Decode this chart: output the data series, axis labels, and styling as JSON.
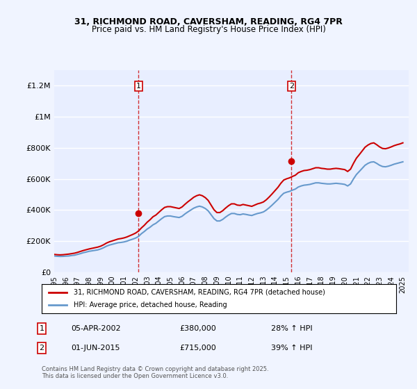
{
  "title_line1": "31, RICHMOND ROAD, CAVERSHAM, READING, RG4 7PR",
  "title_line2": "Price paid vs. HM Land Registry's House Price Index (HPI)",
  "legend_label_red": "31, RICHMOND ROAD, CAVERSHAM, READING, RG4 7PR (detached house)",
  "legend_label_blue": "HPI: Average price, detached house, Reading",
  "footnote": "Contains HM Land Registry data © Crown copyright and database right 2025.\nThis data is licensed under the Open Government Licence v3.0.",
  "sale1_date": "05-APR-2002",
  "sale1_price": 380000,
  "sale1_pct": "28% ↑ HPI",
  "sale2_date": "01-JUN-2015",
  "sale2_price": 715000,
  "sale2_pct": "39% ↑ HPI",
  "ylim": [
    0,
    1300000
  ],
  "background_color": "#f0f4ff",
  "plot_bg_color": "#e8eeff",
  "red_color": "#cc0000",
  "blue_color": "#6699cc",
  "vline_color": "#cc0000",
  "grid_color": "#ffffff",
  "hpi_data": {
    "years": [
      1995.0,
      1995.25,
      1995.5,
      1995.75,
      1996.0,
      1996.25,
      1996.5,
      1996.75,
      1997.0,
      1997.25,
      1997.5,
      1997.75,
      1998.0,
      1998.25,
      1998.5,
      1998.75,
      1999.0,
      1999.25,
      1999.5,
      1999.75,
      2000.0,
      2000.25,
      2000.5,
      2000.75,
      2001.0,
      2001.25,
      2001.5,
      2001.75,
      2002.0,
      2002.25,
      2002.5,
      2002.75,
      2003.0,
      2003.25,
      2003.5,
      2003.75,
      2004.0,
      2004.25,
      2004.5,
      2004.75,
      2005.0,
      2005.25,
      2005.5,
      2005.75,
      2006.0,
      2006.25,
      2006.5,
      2006.75,
      2007.0,
      2007.25,
      2007.5,
      2007.75,
      2008.0,
      2008.25,
      2008.5,
      2008.75,
      2009.0,
      2009.25,
      2009.5,
      2009.75,
      2010.0,
      2010.25,
      2010.5,
      2010.75,
      2011.0,
      2011.25,
      2011.5,
      2011.75,
      2012.0,
      2012.25,
      2012.5,
      2012.75,
      2013.0,
      2013.25,
      2013.5,
      2013.75,
      2014.0,
      2014.25,
      2014.5,
      2014.75,
      2015.0,
      2015.25,
      2015.5,
      2015.75,
      2016.0,
      2016.25,
      2016.5,
      2016.75,
      2017.0,
      2017.25,
      2017.5,
      2017.75,
      2018.0,
      2018.25,
      2018.5,
      2018.75,
      2019.0,
      2019.25,
      2019.5,
      2019.75,
      2020.0,
      2020.25,
      2020.5,
      2020.75,
      2021.0,
      2021.25,
      2021.5,
      2021.75,
      2022.0,
      2022.25,
      2022.5,
      2022.75,
      2023.0,
      2023.25,
      2023.5,
      2023.75,
      2024.0,
      2024.25,
      2024.5,
      2024.75,
      2025.0
    ],
    "hpi_values": [
      105000,
      103000,
      102000,
      102500,
      104000,
      105000,
      108000,
      110000,
      115000,
      120000,
      126000,
      130000,
      135000,
      138000,
      141000,
      144000,
      150000,
      158000,
      168000,
      175000,
      180000,
      185000,
      190000,
      192000,
      195000,
      200000,
      207000,
      213000,
      220000,
      230000,
      248000,
      262000,
      278000,
      290000,
      305000,
      315000,
      330000,
      345000,
      358000,
      362000,
      362000,
      358000,
      355000,
      352000,
      360000,
      375000,
      388000,
      400000,
      412000,
      420000,
      425000,
      420000,
      410000,
      395000,
      370000,
      345000,
      330000,
      330000,
      340000,
      355000,
      368000,
      378000,
      378000,
      372000,
      370000,
      375000,
      372000,
      368000,
      365000,
      372000,
      378000,
      382000,
      388000,
      400000,
      415000,
      432000,
      450000,
      468000,
      490000,
      508000,
      515000,
      520000,
      528000,
      535000,
      548000,
      555000,
      560000,
      562000,
      565000,
      570000,
      575000,
      575000,
      572000,
      570000,
      568000,
      568000,
      570000,
      572000,
      570000,
      568000,
      565000,
      555000,
      568000,
      600000,
      628000,
      648000,
      668000,
      688000,
      700000,
      708000,
      710000,
      700000,
      688000,
      680000,
      678000,
      682000,
      688000,
      695000,
      700000,
      705000,
      710000
    ],
    "red_values": [
      115000,
      113000,
      112000,
      113000,
      115000,
      117000,
      120000,
      123000,
      128000,
      134000,
      140000,
      145000,
      150000,
      154000,
      158000,
      162000,
      168000,
      177000,
      188000,
      196000,
      202000,
      208000,
      214000,
      217000,
      221000,
      227000,
      235000,
      243000,
      252000,
      265000,
      285000,
      302000,
      322000,
      338000,
      357000,
      368000,
      385000,
      402000,
      417000,
      422000,
      422000,
      418000,
      414000,
      410000,
      420000,
      437000,
      453000,
      467000,
      482000,
      492000,
      498000,
      492000,
      480000,
      462000,
      432000,
      402000,
      384000,
      384000,
      396000,
      413000,
      428000,
      440000,
      440000,
      432000,
      430000,
      436000,
      432000,
      428000,
      424000,
      432000,
      440000,
      445000,
      452000,
      466000,
      484000,
      504000,
      525000,
      546000,
      572000,
      593000,
      601000,
      607000,
      616000,
      624000,
      640000,
      648000,
      654000,
      656000,
      660000,
      666000,
      672000,
      672000,
      668000,
      666000,
      663000,
      663000,
      666000,
      668000,
      666000,
      663000,
      660000,
      648000,
      663000,
      700000,
      733000,
      756000,
      780000,
      804000,
      818000,
      828000,
      832000,
      820000,
      806000,
      796000,
      794000,
      799000,
      806000,
      814000,
      820000,
      825000,
      832000
    ]
  },
  "sale1_x": 2002.25,
  "sale2_x": 2015.42,
  "marker1_y": 380000,
  "marker2_y": 715000,
  "xticks": [
    1995,
    1996,
    1997,
    1998,
    1999,
    2000,
    2001,
    2002,
    2003,
    2004,
    2005,
    2006,
    2007,
    2008,
    2009,
    2010,
    2011,
    2012,
    2013,
    2014,
    2015,
    2016,
    2017,
    2018,
    2019,
    2020,
    2021,
    2022,
    2023,
    2024,
    2025
  ],
  "yticks": [
    0,
    200000,
    400000,
    600000,
    800000,
    1000000,
    1200000
  ],
  "ytick_labels": [
    "£0",
    "£200K",
    "£400K",
    "£600K",
    "£800K",
    "£1M",
    "£1.2M"
  ]
}
